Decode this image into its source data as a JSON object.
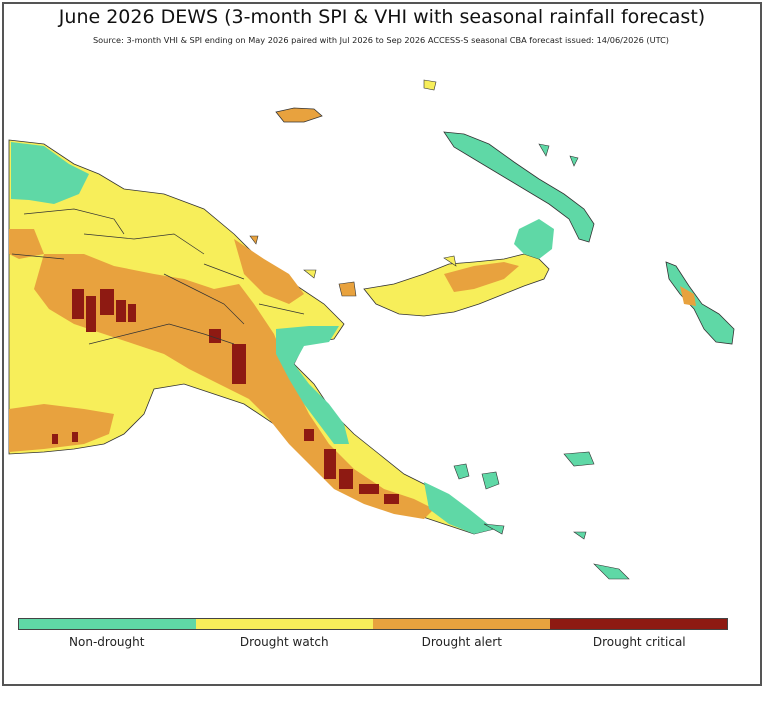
{
  "title": "June 2026 DEWS (3-month SPI & VHI with seasonal rainfall forecast)",
  "subtitle": "Source: 3-month VHI & SPI ending on May 2026 paired with Jul 2026 to Sep 2026 ACCESS-S seasonal CBA forecast issued: 14/06/2026 (UTC)",
  "colors": {
    "non_drought": "#5fd8a6",
    "drought_watch": "#f7ee5a",
    "drought_alert": "#e8a23e",
    "drought_critical": "#8e1a12",
    "boundary": "#333333"
  },
  "legend": {
    "items": [
      {
        "label": "Non-drought",
        "color": "#5fd8a6"
      },
      {
        "label": "Drought watch",
        "color": "#f7ee5a"
      },
      {
        "label": "Drought alert",
        "color": "#e8a23e"
      },
      {
        "label": "Drought critical",
        "color": "#8e1a12"
      }
    ]
  }
}
